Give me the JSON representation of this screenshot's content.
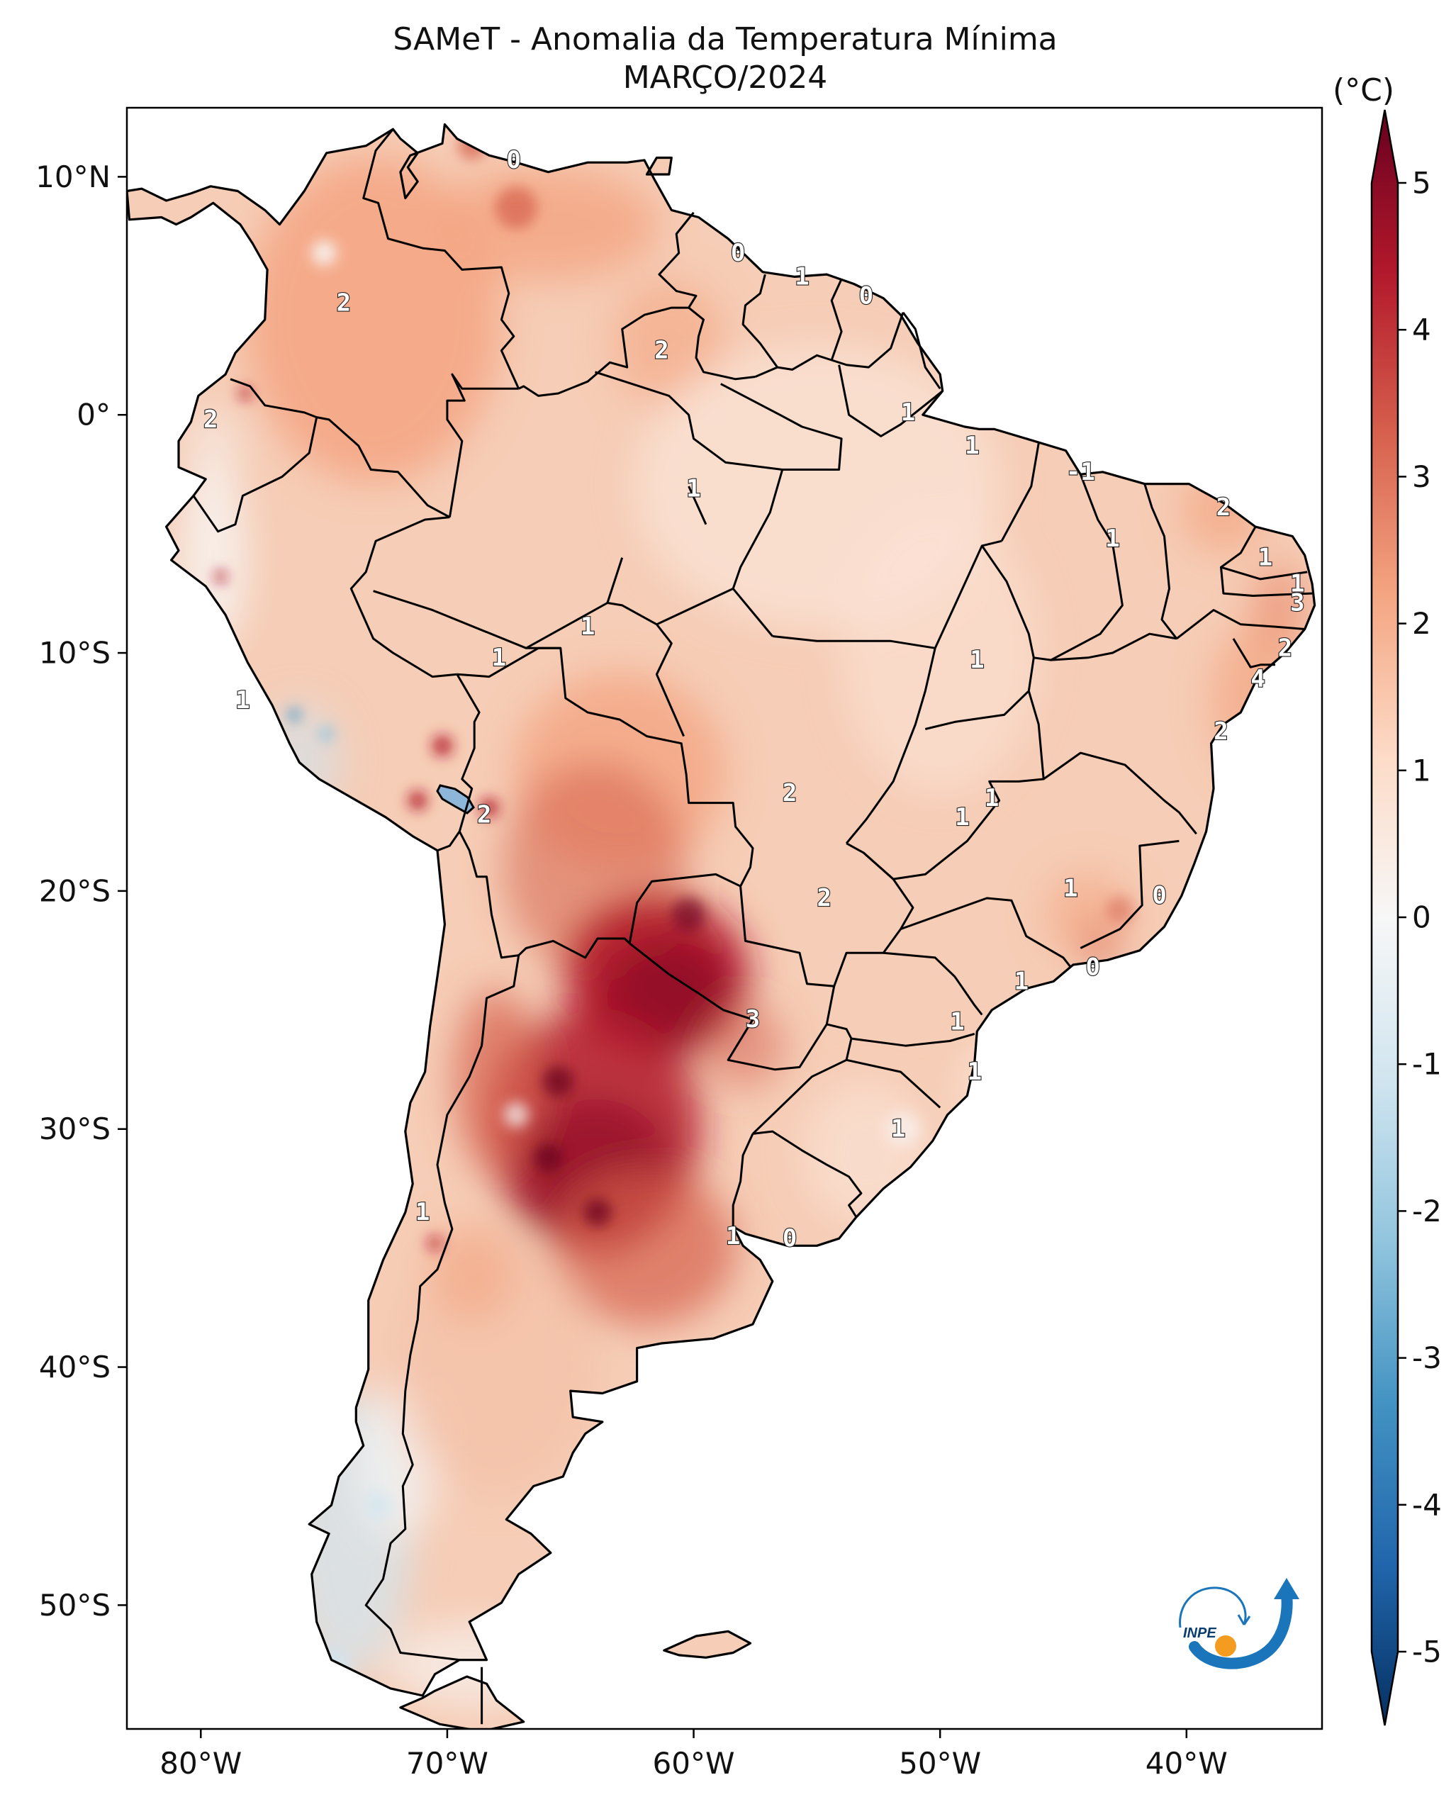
{
  "title": {
    "line1": "SAMeT - Anomalia da Temperatura Mínima",
    "line2": "MARÇO/2024"
  },
  "colorbar": {
    "units": "(°C)",
    "ticks": [
      "5",
      "4",
      "3",
      "2",
      "1",
      "0",
      "-1",
      "-2",
      "-3",
      "-4",
      "-5"
    ],
    "range": [
      -5,
      5
    ],
    "colors": {
      "max": "#67001f",
      "high": "#b2182b",
      "mid_high": "#d6604d",
      "warm": "#f4a582",
      "light_warm": "#fddbc7",
      "zero": "#f7f7f7",
      "light_cool": "#d1e5f0",
      "cool": "#92c5de",
      "mid_low": "#4393c3",
      "low": "#2166ac",
      "min": "#053061"
    }
  },
  "axes": {
    "lon_ticks": [
      "80°W",
      "70°W",
      "60°W",
      "50°W",
      "40°W"
    ],
    "lat_ticks": [
      "10°N",
      "0°",
      "10°S",
      "20°S",
      "30°S",
      "40°S",
      "50°S"
    ]
  },
  "contour_labels": [
    {
      "text": "0",
      "lon": -67.3,
      "lat": 10.7
    },
    {
      "text": "0",
      "lon": -58.2,
      "lat": 6.8
    },
    {
      "text": "1",
      "lon": -55.6,
      "lat": 5.8
    },
    {
      "text": "0",
      "lon": -53.0,
      "lat": 5.0
    },
    {
      "text": "2",
      "lon": -74.2,
      "lat": 4.7
    },
    {
      "text": "2",
      "lon": -61.3,
      "lat": 2.7
    },
    {
      "text": "2",
      "lon": -79.6,
      "lat": -0.2
    },
    {
      "text": "1",
      "lon": -51.3,
      "lat": 0.1
    },
    {
      "text": "1",
      "lon": -48.7,
      "lat": -1.3
    },
    {
      "text": "1",
      "lon": -60.0,
      "lat": -3.1
    },
    {
      "text": "-1",
      "lon": -44.3,
      "lat": -2.4
    },
    {
      "text": "2",
      "lon": -38.5,
      "lat": -3.9
    },
    {
      "text": "1",
      "lon": -43.0,
      "lat": -5.2
    },
    {
      "text": "1",
      "lon": -36.8,
      "lat": -6.0
    },
    {
      "text": "1",
      "lon": -35.5,
      "lat": -7.1
    },
    {
      "text": "3",
      "lon": -35.5,
      "lat": -7.9
    },
    {
      "text": "1",
      "lon": -64.3,
      "lat": -8.9
    },
    {
      "text": "1",
      "lon": -67.9,
      "lat": -10.2
    },
    {
      "text": "2",
      "lon": -36.0,
      "lat": -9.8
    },
    {
      "text": "4",
      "lon": -37.1,
      "lat": -11.1
    },
    {
      "text": "1",
      "lon": -48.5,
      "lat": -10.3
    },
    {
      "text": "1",
      "lon": -78.3,
      "lat": -12.0
    },
    {
      "text": "2",
      "lon": -38.6,
      "lat": -13.3
    },
    {
      "text": "2",
      "lon": -56.1,
      "lat": -15.9
    },
    {
      "text": "1",
      "lon": -47.9,
      "lat": -16.1
    },
    {
      "text": "2",
      "lon": -68.5,
      "lat": -16.8
    },
    {
      "text": "1",
      "lon": -49.1,
      "lat": -16.9
    },
    {
      "text": "2",
      "lon": -54.7,
      "lat": -20.3
    },
    {
      "text": "1",
      "lon": -44.7,
      "lat": -19.9
    },
    {
      "text": "0",
      "lon": -41.1,
      "lat": -20.2
    },
    {
      "text": "0",
      "lon": -43.8,
      "lat": -23.2
    },
    {
      "text": "1",
      "lon": -46.7,
      "lat": -23.8
    },
    {
      "text": "3",
      "lon": -57.6,
      "lat": -25.4
    },
    {
      "text": "1",
      "lon": -49.3,
      "lat": -25.5
    },
    {
      "text": "1",
      "lon": -48.6,
      "lat": -27.6
    },
    {
      "text": "1",
      "lon": -51.7,
      "lat": -30.0
    },
    {
      "text": "1",
      "lon": -71.0,
      "lat": -33.5
    },
    {
      "text": "1",
      "lon": -58.4,
      "lat": -34.5
    },
    {
      "text": "0",
      "lon": -56.1,
      "lat": -34.6
    }
  ]
}
